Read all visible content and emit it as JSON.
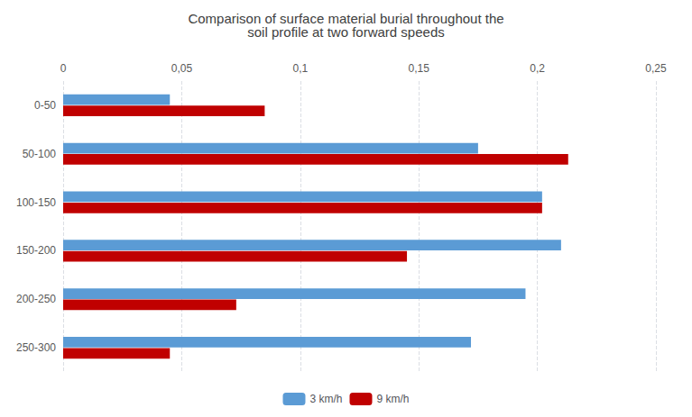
{
  "chart_data": {
    "type": "bar",
    "orientation": "horizontal",
    "title": "Comparison of surface material burial throughout the\nsoil profile at two forward speeds",
    "categories": [
      "0-50",
      "50-100",
      "100-150",
      "150-200",
      "200-250",
      "250-300"
    ],
    "series": [
      {
        "name": "3 km/h",
        "color": "#5B9BD5",
        "values": [
          0.045,
          0.175,
          0.202,
          0.21,
          0.195,
          0.172
        ]
      },
      {
        "name": "9 km/h",
        "color": "#C00000",
        "values": [
          0.085,
          0.213,
          0.202,
          0.145,
          0.073,
          0.045
        ]
      }
    ],
    "xlim": [
      0,
      0.25
    ],
    "xticks": [
      0,
      {
        "value": 0.05,
        "label": "0,05"
      },
      {
        "value": 0.1,
        "label": "0,1"
      },
      {
        "value": 0.15,
        "label": "0,15"
      },
      {
        "value": 0.2,
        "label": "0,2"
      },
      {
        "value": 0.25,
        "label": "0,25"
      }
    ],
    "grid": true,
    "legend": "bottom"
  }
}
